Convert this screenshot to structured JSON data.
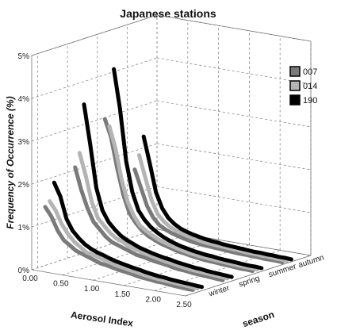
{
  "chart_data": {
    "type": "line",
    "title": "Japanese stations",
    "xlabel": "Aerosol Index",
    "ylabel": "Frequency of Occurrence (%)",
    "zlabel": "season",
    "x_ticks": [
      "0.00",
      "0.50",
      "1.00",
      "1.50",
      "2.00",
      "2.50"
    ],
    "y_ticks": [
      "0%",
      "1%",
      "2%",
      "3%",
      "4%",
      "5%"
    ],
    "seasons": [
      "winter",
      "spring",
      "summer",
      "autumn"
    ],
    "xlim": [
      0,
      2.5
    ],
    "ylim": [
      0,
      5
    ],
    "legend_position": "top-right",
    "x": [
      0.05,
      0.15,
      0.25,
      0.35,
      0.45,
      0.55,
      0.65,
      0.75,
      0.85,
      0.95,
      1.05,
      1.15,
      1.25,
      1.35,
      1.45,
      1.55,
      1.65,
      1.75,
      1.85,
      1.95,
      2.05,
      2.15,
      2.25,
      2.35,
      2.45
    ],
    "series": [
      {
        "name": "007",
        "color": "#7a7a7a",
        "values": {
          "winter": [
            1.4,
            1.2,
            0.9,
            0.7,
            0.6,
            0.5,
            0.45,
            0.4,
            0.35,
            0.3,
            0.28,
            0.25,
            0.22,
            0.2,
            0.18,
            0.15,
            0.13,
            0.12,
            0.1,
            0.1,
            0.08,
            0.07,
            0.06,
            0.05,
            0.05
          ],
          "spring": [
            2.1,
            1.6,
            1.2,
            0.9,
            0.75,
            0.6,
            0.5,
            0.45,
            0.4,
            0.35,
            0.3,
            0.28,
            0.25,
            0.22,
            0.2,
            0.18,
            0.15,
            0.13,
            0.12,
            0.1,
            0.09,
            0.08,
            0.07,
            0.06,
            0.05
          ],
          "summer": [
            3.0,
            2.6,
            1.9,
            1.3,
            0.9,
            0.7,
            0.55,
            0.45,
            0.38,
            0.32,
            0.28,
            0.24,
            0.2,
            0.18,
            0.15,
            0.13,
            0.11,
            0.1,
            0.09,
            0.08,
            0.07,
            0.06,
            0.05,
            0.05,
            0.04
          ],
          "autumn": [
            1.6,
            1.2,
            0.8,
            0.55,
            0.4,
            0.32,
            0.26,
            0.22,
            0.18,
            0.15,
            0.13,
            0.11,
            0.1,
            0.09,
            0.08,
            0.07,
            0.06,
            0.05,
            0.05,
            0.04,
            0.04,
            0.03,
            0.03,
            0.03,
            0.02
          ]
        }
      },
      {
        "name": "014",
        "color": "#b4b4b4",
        "values": {
          "winter": [
            1.5,
            1.3,
            1.0,
            0.8,
            0.65,
            0.55,
            0.45,
            0.42,
            0.38,
            0.33,
            0.3,
            0.26,
            0.24,
            0.21,
            0.19,
            0.16,
            0.14,
            0.12,
            0.11,
            0.1,
            0.09,
            0.08,
            0.07,
            0.06,
            0.05
          ],
          "spring": [
            2.4,
            1.9,
            1.3,
            0.95,
            0.8,
            0.65,
            0.55,
            0.5,
            0.42,
            0.38,
            0.33,
            0.3,
            0.27,
            0.24,
            0.21,
            0.19,
            0.16,
            0.14,
            0.12,
            0.11,
            0.1,
            0.09,
            0.08,
            0.07,
            0.06
          ],
          "summer": [
            2.8,
            2.3,
            1.6,
            1.1,
            0.8,
            0.6,
            0.5,
            0.42,
            0.35,
            0.3,
            0.26,
            0.22,
            0.19,
            0.16,
            0.14,
            0.12,
            0.11,
            0.1,
            0.09,
            0.08,
            0.07,
            0.06,
            0.05,
            0.05,
            0.04
          ],
          "autumn": [
            1.9,
            1.4,
            0.9,
            0.6,
            0.45,
            0.35,
            0.28,
            0.24,
            0.2,
            0.17,
            0.14,
            0.12,
            0.11,
            0.1,
            0.09,
            0.08,
            0.07,
            0.06,
            0.05,
            0.05,
            0.04,
            0.04,
            0.03,
            0.03,
            0.02
          ]
        }
      },
      {
        "name": "190",
        "color": "#000000",
        "values": {
          "winter": [
            1.9,
            1.6,
            1.1,
            0.85,
            0.7,
            0.58,
            0.5,
            0.44,
            0.4,
            0.35,
            0.31,
            0.28,
            0.25,
            0.22,
            0.2,
            0.17,
            0.15,
            0.13,
            0.12,
            0.1,
            0.09,
            0.08,
            0.07,
            0.06,
            0.05
          ],
          "spring": [
            3.5,
            2.6,
            1.6,
            1.1,
            0.85,
            0.7,
            0.58,
            0.5,
            0.44,
            0.38,
            0.34,
            0.3,
            0.27,
            0.24,
            0.22,
            0.19,
            0.17,
            0.15,
            0.13,
            0.12,
            0.1,
            0.09,
            0.08,
            0.07,
            0.06
          ],
          "summer": [
            4.1,
            3.2,
            2.0,
            1.3,
            0.9,
            0.7,
            0.56,
            0.46,
            0.38,
            0.32,
            0.27,
            0.23,
            0.2,
            0.17,
            0.15,
            0.13,
            0.12,
            0.1,
            0.09,
            0.08,
            0.07,
            0.06,
            0.05,
            0.05,
            0.04
          ],
          "autumn": [
            2.3,
            1.7,
            1.05,
            0.7,
            0.5,
            0.38,
            0.3,
            0.25,
            0.21,
            0.18,
            0.15,
            0.13,
            0.12,
            0.1,
            0.09,
            0.08,
            0.07,
            0.06,
            0.05,
            0.05,
            0.04,
            0.04,
            0.03,
            0.03,
            0.02
          ]
        }
      }
    ]
  }
}
